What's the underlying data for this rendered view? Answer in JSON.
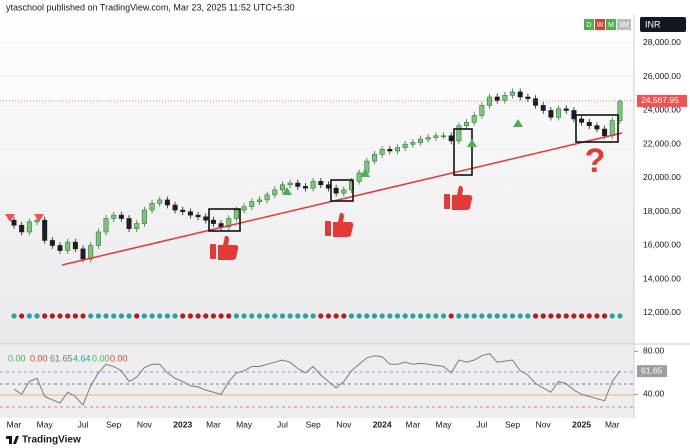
{
  "header": {
    "publisher": "ytaschool published on TradingView.com, Mar 23, 2025 11:52 UTC+5:30",
    "intervals": [
      "D",
      "W",
      "M",
      "3M"
    ],
    "currency": "INR"
  },
  "chart_data": [
    {
      "type": "candlestick",
      "categories": [
        "Mar",
        null,
        null,
        null,
        "May",
        null,
        null,
        null,
        null,
        "Jul",
        null,
        null,
        null,
        "Sep",
        null,
        null,
        null,
        "Nov",
        null,
        null,
        null,
        null,
        "2023",
        null,
        null,
        null,
        "Mar",
        null,
        null,
        null,
        "May",
        null,
        null,
        null,
        null,
        "Jul",
        null,
        null,
        null,
        "Sep",
        null,
        null,
        null,
        "Nov",
        null,
        null,
        null,
        null,
        "2024",
        null,
        null,
        null,
        "Mar",
        null,
        null,
        null,
        "May",
        null,
        null,
        null,
        null,
        "Jul",
        null,
        null,
        null,
        "Sep",
        null,
        null,
        null,
        "Nov",
        null,
        null,
        null,
        null,
        "2025",
        null,
        null,
        null,
        "Mar",
        null
      ],
      "open": [
        17500,
        17200,
        16800,
        17400,
        17500,
        16300,
        16000,
        15700,
        16200,
        15800,
        15200,
        16000,
        16800,
        17600,
        17800,
        17600,
        17000,
        17300,
        18100,
        18500,
        18700,
        18400,
        18100,
        18000,
        17800,
        17700,
        17500,
        17300,
        17100,
        17600,
        18100,
        18300,
        18600,
        18700,
        19000,
        19300,
        19600,
        19700,
        19500,
        19400,
        19800,
        19600,
        19400,
        19100,
        19300,
        19800,
        20300,
        21000,
        21400,
        21700,
        21600,
        21800,
        22000,
        22100,
        22300,
        22400,
        22500,
        22500,
        22200,
        23100,
        23300,
        23700,
        24300,
        24800,
        24600,
        24900,
        25100,
        24800,
        24700,
        24300,
        24000,
        23600,
        24100,
        24000,
        23500,
        23300,
        23100,
        22900,
        22500,
        23400
      ],
      "high": [
        17700,
        17400,
        17600,
        17700,
        17700,
        16500,
        16200,
        16400,
        16400,
        16000,
        16200,
        17000,
        17800,
        18000,
        18000,
        17800,
        17500,
        18300,
        18700,
        18900,
        18900,
        18600,
        18300,
        18200,
        18000,
        17900,
        17700,
        17500,
        17800,
        18300,
        18500,
        18800,
        18900,
        19200,
        19500,
        19800,
        19900,
        19900,
        19700,
        20000,
        20000,
        19800,
        19600,
        19500,
        20000,
        20500,
        21200,
        21600,
        21900,
        21900,
        22000,
        22200,
        22300,
        22500,
        22600,
        22700,
        22700,
        22700,
        23300,
        23500,
        23900,
        24500,
        25000,
        25000,
        25100,
        25300,
        25300,
        25000,
        24900,
        24500,
        24200,
        24300,
        24300,
        24200,
        23700,
        23500,
        23300,
        23100,
        23600,
        24650
      ],
      "low": [
        17000,
        16600,
        16600,
        17200,
        16100,
        15800,
        15500,
        15500,
        15600,
        15000,
        15000,
        15800,
        16600,
        17400,
        17400,
        16800,
        16800,
        17100,
        17900,
        18300,
        18200,
        17900,
        17800,
        17600,
        17500,
        17300,
        17100,
        16900,
        16900,
        17400,
        17900,
        18100,
        18400,
        18500,
        18800,
        19100,
        19400,
        19300,
        19200,
        19200,
        19400,
        19200,
        18900,
        18900,
        19100,
        19600,
        20100,
        20800,
        21200,
        21400,
        21400,
        21600,
        21800,
        21900,
        22100,
        22200,
        22300,
        22000,
        22000,
        22900,
        23100,
        23500,
        24100,
        24400,
        24400,
        24700,
        24600,
        24500,
        24100,
        23800,
        23400,
        23400,
        23800,
        23300,
        23100,
        22900,
        22700,
        22300,
        22300,
        23200
      ],
      "close": [
        17200,
        16800,
        17400,
        17500,
        16300,
        16000,
        15700,
        16200,
        15800,
        15200,
        16000,
        16800,
        17600,
        17800,
        17600,
        17000,
        17300,
        18100,
        18500,
        18700,
        18400,
        18100,
        18000,
        17800,
        17700,
        17500,
        17300,
        17100,
        17600,
        18100,
        18300,
        18600,
        18700,
        19000,
        19300,
        19600,
        19700,
        19500,
        19400,
        19800,
        19600,
        19400,
        19100,
        19300,
        19800,
        20300,
        21000,
        21400,
        21700,
        21600,
        21800,
        22000,
        22100,
        22300,
        22400,
        22500,
        22500,
        22200,
        23100,
        23300,
        23700,
        24300,
        24800,
        24600,
        24900,
        25100,
        24800,
        24700,
        24300,
        24000,
        23600,
        24100,
        24000,
        23500,
        23300,
        23100,
        22900,
        22500,
        23400,
        24567.95
      ],
      "up_color": "#2f7d32",
      "down_color": "#1e1e1e",
      "ylim": [
        10400,
        29480
      ],
      "yticks": [
        {
          "value": 12000,
          "label": "12,000.00"
        },
        {
          "value": 14000,
          "label": "14,000.00"
        },
        {
          "value": 16000,
          "label": "16,000.00"
        },
        {
          "value": 18000,
          "label": "18,000.00"
        },
        {
          "value": 20000,
          "label": "20,000.00"
        },
        {
          "value": 22000,
          "label": "22,000.00"
        },
        {
          "value": 24000,
          "label": "24,000.00"
        },
        {
          "value": 26000,
          "label": "26,000.00"
        },
        {
          "value": 28000,
          "label": "28,000.00"
        }
      ],
      "last_price": {
        "value": 24567.95,
        "label": "24,567.95"
      },
      "annotation": "?"
    },
    {
      "type": "line",
      "values": [
        45,
        40,
        52,
        55,
        38,
        35,
        32,
        42,
        38,
        30,
        48,
        60,
        68,
        66,
        62,
        52,
        56,
        65,
        68,
        68,
        60,
        55,
        52,
        48,
        47,
        44,
        42,
        40,
        52,
        60,
        62,
        66,
        66,
        68,
        70,
        72,
        70,
        64,
        60,
        66,
        58,
        52,
        46,
        52,
        62,
        68,
        74,
        76,
        75,
        68,
        68,
        70,
        68,
        69,
        68,
        67,
        66,
        60,
        72,
        70,
        72,
        76,
        78,
        70,
        71,
        72,
        62,
        58,
        50,
        46,
        42,
        52,
        50,
        44,
        40,
        38,
        36,
        34,
        52,
        61.65
      ],
      "color": "#7b7b7b",
      "ylim": [
        18,
        86
      ],
      "yticks": [
        {
          "value": 40,
          "label": "40.00"
        },
        {
          "value": 80,
          "label": "80.00"
        }
      ],
      "readout": [
        "0.00",
        "0.00",
        "61.65",
        "4.64",
        "0.00",
        "0.00"
      ]
    }
  ],
  "footer": {
    "brand": "TradingView"
  }
}
